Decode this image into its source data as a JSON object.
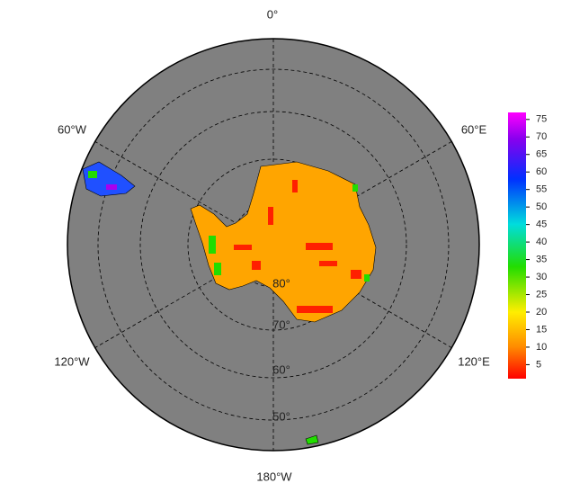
{
  "map": {
    "longitude_labels": [
      "0°",
      "60°E",
      "120°E",
      "180°W",
      "120°W",
      "60°W"
    ],
    "latitude_labels": [
      "80°",
      "70°",
      "60°",
      "50°"
    ]
  },
  "colorbar": {
    "range": [
      1,
      77
    ],
    "ticks": [
      5,
      10,
      15,
      20,
      25,
      30,
      35,
      40,
      45,
      50,
      55,
      60,
      65,
      70,
      75
    ]
  }
}
